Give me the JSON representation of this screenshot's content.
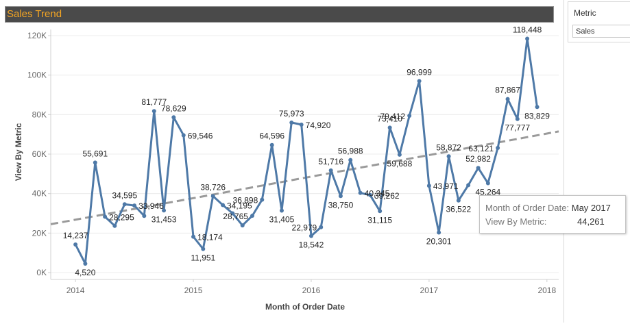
{
  "title": "Sales Trend",
  "parameter": {
    "label": "Metric",
    "selected": "Sales"
  },
  "tooltip": {
    "row1_label": "Month of Order Date:",
    "row1_value": "May 2017",
    "row2_label": "View By Metric:",
    "row2_value": "44,261"
  },
  "colors": {
    "line": "#4e79a7",
    "trend": "#9a9a9a",
    "title": "#f5a623",
    "title_bg": "#4a4a4a"
  },
  "chart_data": {
    "type": "line",
    "title": "Sales Trend",
    "xlabel": "Month of Order Date",
    "ylabel": "View By Metric",
    "x_ticks": [
      "2014",
      "2015",
      "2016",
      "2017",
      "2018"
    ],
    "x_tick_values": [
      2014,
      2015,
      2016,
      2017,
      2018
    ],
    "y_ticks": [
      "0K",
      "20K",
      "40K",
      "60K",
      "80K",
      "100K",
      "120K"
    ],
    "y_tick_values": [
      0,
      20000,
      40000,
      60000,
      80000,
      100000,
      120000
    ],
    "ylim": [
      0,
      120000
    ],
    "xlim": [
      2013.79,
      2018.1
    ],
    "series": [
      {
        "name": "Sales",
        "points": [
          {
            "x": 2014.0,
            "y": 14237,
            "label": "14,237"
          },
          {
            "x": 2014.083,
            "y": 4520,
            "label": "4,520"
          },
          {
            "x": 2014.167,
            "y": 55691,
            "label": "55,691"
          },
          {
            "x": 2014.25,
            "y": 28295,
            "label": "28,295"
          },
          {
            "x": 2014.333,
            "y": 23648
          },
          {
            "x": 2014.417,
            "y": 34595,
            "label": "34,595"
          },
          {
            "x": 2014.5,
            "y": 33946,
            "label": "33,946"
          },
          {
            "x": 2014.583,
            "y": 28700
          },
          {
            "x": 2014.667,
            "y": 81777,
            "label": "81,777"
          },
          {
            "x": 2014.75,
            "y": 31453,
            "label": "31,453"
          },
          {
            "x": 2014.833,
            "y": 78629,
            "label": "78,629"
          },
          {
            "x": 2014.917,
            "y": 69546,
            "label": "69,546"
          },
          {
            "x": 2015.0,
            "y": 18174,
            "label": "18,174"
          },
          {
            "x": 2015.083,
            "y": 11951,
            "label": "11,951"
          },
          {
            "x": 2015.167,
            "y": 38726,
            "label": "38,726"
          },
          {
            "x": 2015.25,
            "y": 34195,
            "label": "34,195"
          },
          {
            "x": 2015.333,
            "y": 30000
          },
          {
            "x": 2015.417,
            "y": 23900
          },
          {
            "x": 2015.5,
            "y": 28765,
            "label": "28,765"
          },
          {
            "x": 2015.583,
            "y": 36898,
            "label": "36,898"
          },
          {
            "x": 2015.667,
            "y": 64596,
            "label": "64,596"
          },
          {
            "x": 2015.75,
            "y": 31405,
            "label": "31,405"
          },
          {
            "x": 2015.833,
            "y": 75973,
            "label": "75,973"
          },
          {
            "x": 2015.917,
            "y": 74920,
            "label": "74,920"
          },
          {
            "x": 2016.0,
            "y": 18542,
            "label": "18,542"
          },
          {
            "x": 2016.083,
            "y": 22979,
            "label": "22,979"
          },
          {
            "x": 2016.167,
            "y": 51716,
            "label": "51,716"
          },
          {
            "x": 2016.25,
            "y": 38750,
            "label": "38,750"
          },
          {
            "x": 2016.333,
            "y": 56988,
            "label": "56,988"
          },
          {
            "x": 2016.417,
            "y": 40345,
            "label": "40,345"
          },
          {
            "x": 2016.5,
            "y": 39262,
            "label": "39,262"
          },
          {
            "x": 2016.583,
            "y": 31115,
            "label": "31,115"
          },
          {
            "x": 2016.667,
            "y": 73410,
            "label": "73,410"
          },
          {
            "x": 2016.75,
            "y": 59688,
            "label": "59,688"
          },
          {
            "x": 2016.833,
            "y": 79412,
            "label": "79,412"
          },
          {
            "x": 2016.917,
            "y": 96999,
            "label": "96,999"
          },
          {
            "x": 2017.0,
            "y": 43971,
            "label": "43,971"
          },
          {
            "x": 2017.083,
            "y": 20301,
            "label": "20,301"
          },
          {
            "x": 2017.167,
            "y": 58872,
            "label": "58,872"
          },
          {
            "x": 2017.25,
            "y": 36522,
            "label": "36,522"
          },
          {
            "x": 2017.333,
            "y": 44261
          },
          {
            "x": 2017.417,
            "y": 52982,
            "label": "52,982"
          },
          {
            "x": 2017.5,
            "y": 45264,
            "label": "45,264"
          },
          {
            "x": 2017.583,
            "y": 63121,
            "label": "63,121"
          },
          {
            "x": 2017.667,
            "y": 87867,
            "label": "87,867"
          },
          {
            "x": 2017.75,
            "y": 77777,
            "label": "77,777"
          },
          {
            "x": 2017.833,
            "y": 118448,
            "label": "118,448"
          },
          {
            "x": 2017.917,
            "y": 83829,
            "label": "83,829"
          }
        ]
      }
    ],
    "trend_line": {
      "style": "dashed",
      "start": {
        "x": 2013.79,
        "y": 24500
      },
      "end": {
        "x": 2018.1,
        "y": 71500
      }
    },
    "grid": true,
    "legend": "none"
  }
}
